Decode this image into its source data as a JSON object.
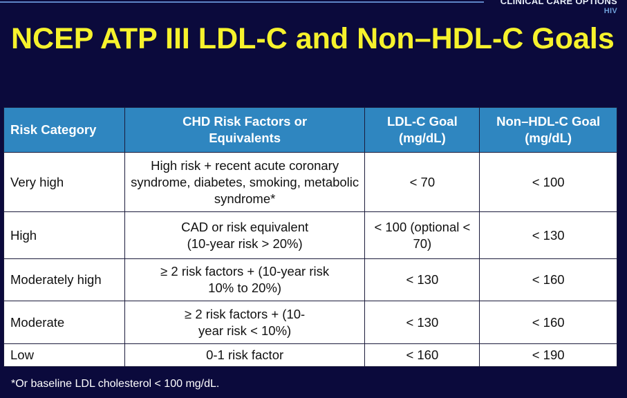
{
  "logo": {
    "name": "CLINICAL CARE OPTIONS",
    "sub": "HIV"
  },
  "title": "NCEP ATP III LDL-C and Non–HDL-C Goals",
  "table": {
    "headers": [
      "Risk Category",
      "CHD Risk Factors or Equivalents",
      "LDL-C Goal (mg/dL)",
      "Non–HDL-C Goal (mg/dL)"
    ],
    "rows": [
      {
        "category": "Very high",
        "factors": "High risk + recent acute coronary syndrome, diabetes, smoking, metabolic syndrome*",
        "ldl": "< 70",
        "nonhdl": "< 100"
      },
      {
        "category": "High",
        "factors": "CAD or risk equivalent (10-year risk > 20%)",
        "ldl": "< 100 (optional < 70)",
        "nonhdl": "< 130"
      },
      {
        "category": "Moderately high",
        "factors": "≥ 2 risk factors + (10-year risk 10% to 20%)",
        "ldl": "< 130",
        "nonhdl": "< 160"
      },
      {
        "category": "Moderate",
        "factors": "≥ 2 risk factors + (10-year risk < 10%)",
        "ldl": "< 130",
        "nonhdl": "< 160"
      },
      {
        "category": "Low",
        "factors": "0-1 risk factor",
        "ldl": "< 160",
        "nonhdl": "< 190"
      }
    ]
  },
  "footnote": "*Or baseline LDL cholesterol < 100 mg/dL."
}
